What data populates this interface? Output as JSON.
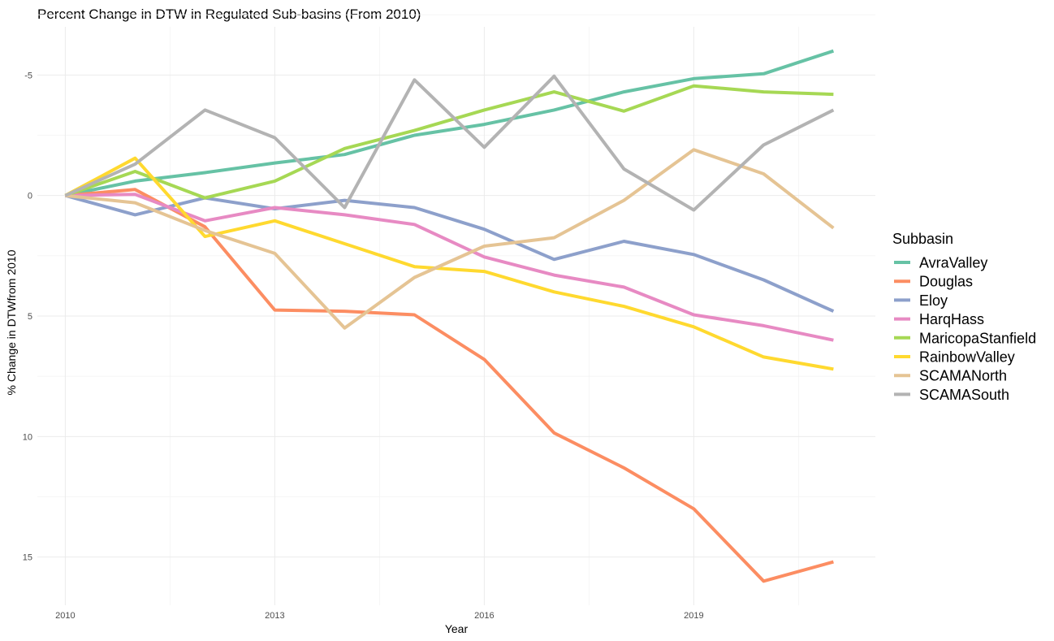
{
  "chart_data": {
    "type": "line",
    "title": "Percent Change in DTW in Regulated Sub-basins (From 2010)",
    "xlabel": "Year",
    "ylabel": "% Change in DTWfrom 2010",
    "x": [
      2010,
      2011,
      2012,
      2013,
      2014,
      2015,
      2016,
      2017,
      2018,
      2019,
      2020,
      2021
    ],
    "x_ticks": [
      2010,
      2013,
      2016,
      2019
    ],
    "y_ticks": [
      -5,
      0,
      5,
      10,
      15
    ],
    "y_reversed": true,
    "xlim": [
      2009.6,
      2021.6
    ],
    "ylim": [
      -7,
      17
    ],
    "grid": true,
    "legend_title": "Subbasin",
    "legend_position": "right",
    "series": [
      {
        "name": "AvraValley",
        "color": "#66C2A5",
        "values": [
          0,
          -0.6,
          -0.95,
          -1.35,
          -1.7,
          -2.5,
          -2.95,
          -3.55,
          -4.3,
          -4.85,
          -5.05,
          -6.0
        ]
      },
      {
        "name": "Douglas",
        "color": "#FC8D62",
        "values": [
          0,
          -0.25,
          1.3,
          4.75,
          4.8,
          4.95,
          6.8,
          9.85,
          11.3,
          13.0,
          16.0,
          15.2
        ]
      },
      {
        "name": "Eloy",
        "color": "#8DA0CB",
        "values": [
          0,
          0.8,
          0.1,
          0.55,
          0.2,
          0.5,
          1.4,
          2.65,
          1.9,
          2.45,
          3.5,
          4.8
        ]
      },
      {
        "name": "HarqHass",
        "color": "#E78AC3",
        "values": [
          0,
          -0.05,
          1.05,
          0.5,
          0.8,
          1.2,
          2.55,
          3.3,
          3.8,
          4.95,
          5.4,
          6.0
        ]
      },
      {
        "name": "MaricopaStanfield",
        "color": "#A6D854",
        "values": [
          0,
          -1.0,
          0.1,
          -0.6,
          -1.95,
          -2.7,
          -3.55,
          -4.3,
          -3.5,
          -4.55,
          -4.3,
          -4.2
        ]
      },
      {
        "name": "RainbowValley",
        "color": "#FFD92F",
        "values": [
          0,
          -1.55,
          1.7,
          1.05,
          2.0,
          2.95,
          3.15,
          4.0,
          4.6,
          5.45,
          6.7,
          7.2
        ]
      },
      {
        "name": "SCAMANorth",
        "color": "#E5C494",
        "values": [
          0,
          0.3,
          1.45,
          2.4,
          5.5,
          3.4,
          2.1,
          1.75,
          0.2,
          -1.9,
          -0.9,
          1.35
        ]
      },
      {
        "name": "SCAMASouth",
        "color": "#B3B3B3",
        "values": [
          0,
          -1.3,
          -3.55,
          -2.4,
          0.5,
          -4.8,
          -2.0,
          -4.95,
          -1.1,
          0.6,
          -2.1,
          -3.55
        ]
      }
    ]
  }
}
